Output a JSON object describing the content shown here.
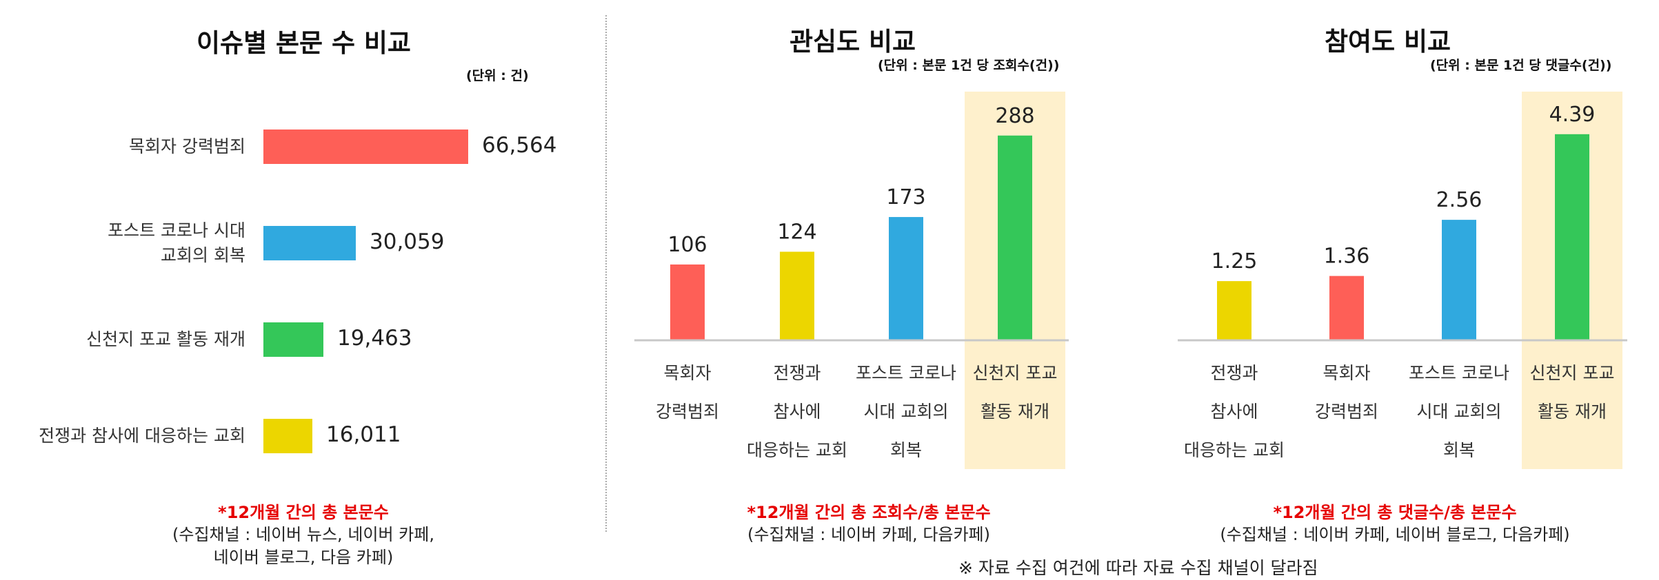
{
  "chart_data": [
    {
      "type": "bar",
      "orientation": "horizontal",
      "title": "이슈별 본문 수 비교",
      "unit_note": "(단위 : 건)",
      "categories": [
        "목회자 강력범죄",
        "포스트 코로나 시대\n교회의 회복",
        "신천지 포교 활동 재개",
        "전쟁과 참사에 대응하는 교회"
      ],
      "values": [
        66564,
        30059,
        19463,
        16011
      ],
      "value_labels": [
        "66,564",
        "30,059",
        "19,463",
        "16,011"
      ],
      "colors": [
        "#fe5f57",
        "#30a9df",
        "#34c759",
        "#ecd600"
      ],
      "xlim": [
        0,
        66564
      ],
      "grid": false,
      "note_red": "*12개월 간의 총 본문수",
      "note_sub": [
        "(수집채널 : 네이버 뉴스, 네이버 카페,",
        "네이버 블로그, 다음 카페)"
      ]
    },
    {
      "type": "bar",
      "title": "관심도 비교",
      "unit_note": "(단위 : 본문 1건 당 조회수(건))",
      "categories": [
        [
          "목회자",
          "강력범죄"
        ],
        [
          "전쟁과",
          "참사에",
          "대응하는 교회"
        ],
        [
          "포스트 코로나",
          "시대 교회의",
          "회복"
        ],
        [
          "신천지 포교",
          "활동 재개"
        ]
      ],
      "values": [
        106,
        124,
        173,
        288
      ],
      "value_labels": [
        "106",
        "124",
        "173",
        "288"
      ],
      "colors": [
        "#fe5f57",
        "#ecd600",
        "#30a9df",
        "#34c759"
      ],
      "highlight_index": 3,
      "highlight_color": "#fef0cc",
      "ylim": [
        0,
        350
      ],
      "grid": false,
      "note_red": "*12개월 간의 총 조회수/총 본문수",
      "note_sub": [
        "(수집채널 : 네이버 카페, 다음카페)"
      ]
    },
    {
      "type": "bar",
      "title": "참여도 비교",
      "unit_note": "(단위 : 본문 1건 당 댓글수(건))",
      "categories": [
        [
          "전쟁과",
          "참사에",
          "대응하는 교회"
        ],
        [
          "목회자",
          "강력범죄"
        ],
        [
          "포스트 코로나",
          "시대 교회의",
          "회복"
        ],
        [
          "신천지 포교",
          "활동 재개"
        ]
      ],
      "values": [
        1.25,
        1.36,
        2.56,
        4.39
      ],
      "value_labels": [
        "1.25",
        "1.36",
        "2.56",
        "4.39"
      ],
      "colors": [
        "#ecd600",
        "#fe5f57",
        "#30a9df",
        "#34c759"
      ],
      "highlight_index": 3,
      "highlight_color": "#fef0cc",
      "ylim": [
        0,
        5.3
      ],
      "grid": false,
      "note_red": "*12개월 간의 총 댓글수/총 본문수",
      "note_sub": [
        "(수집채널 : 네이버 카페, 네이버 블로그, 다음카페)"
      ]
    }
  ],
  "footnote": "※ 자료 수집 여건에 따라 자료 수집 채널이 달라짐"
}
